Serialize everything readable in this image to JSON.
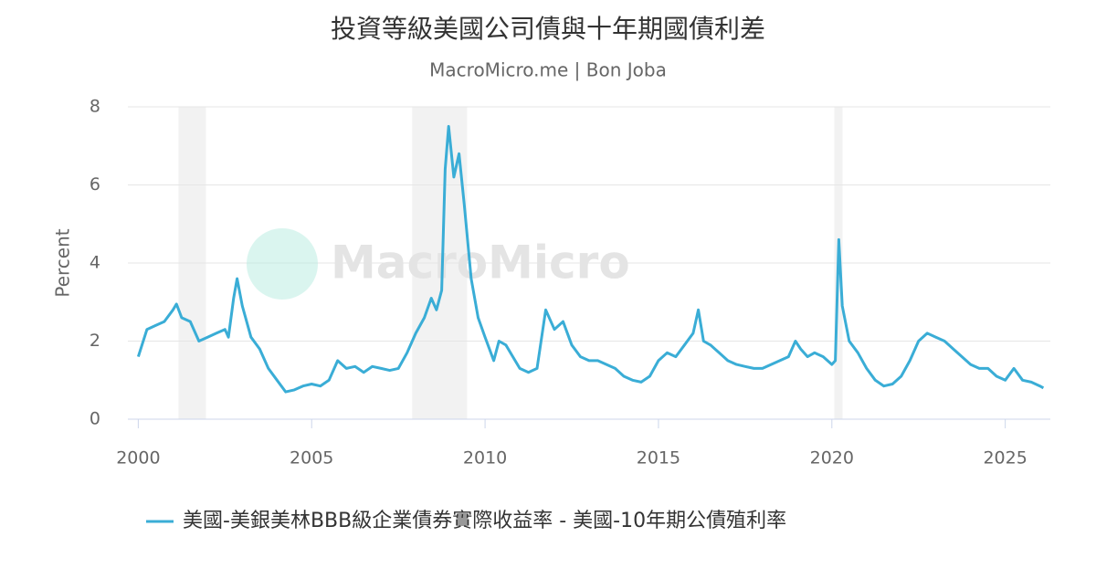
{
  "chart_data": {
    "type": "line",
    "title": "投資等級美國公司債與十年期國債利差",
    "subtitle": "MacroMicro.me | Bon Joba",
    "y_label": "Percent",
    "watermark": "MacroMicro",
    "xlim": [
      1999.7,
      2026.3
    ],
    "xticks": [
      2000,
      2005,
      2010,
      2015,
      2020,
      2025
    ],
    "ylim": [
      0,
      8
    ],
    "yticks": [
      0,
      2,
      4,
      6,
      8
    ],
    "grid": true,
    "shaded_periods": [
      [
        2001.16,
        2001.95
      ],
      [
        2007.9,
        2009.48
      ],
      [
        2020.07,
        2020.31
      ]
    ],
    "x": [
      2000.0,
      2000.25,
      2000.5,
      2000.75,
      2001.0,
      2001.1,
      2001.25,
      2001.5,
      2001.75,
      2002.0,
      2002.25,
      2002.5,
      2002.6,
      2002.75,
      2002.85,
      2003.0,
      2003.25,
      2003.5,
      2003.75,
      2004.0,
      2004.25,
      2004.5,
      2004.75,
      2005.0,
      2005.25,
      2005.5,
      2005.75,
      2006.0,
      2006.25,
      2006.5,
      2006.75,
      2007.0,
      2007.25,
      2007.5,
      2007.75,
      2008.0,
      2008.25,
      2008.45,
      2008.6,
      2008.75,
      2008.85,
      2008.95,
      2009.1,
      2009.25,
      2009.4,
      2009.6,
      2009.8,
      2010.0,
      2010.25,
      2010.4,
      2010.6,
      2010.8,
      2011.0,
      2011.25,
      2011.5,
      2011.75,
      2012.0,
      2012.25,
      2012.5,
      2012.75,
      2013.0,
      2013.25,
      2013.5,
      2013.75,
      2014.0,
      2014.25,
      2014.5,
      2014.75,
      2015.0,
      2015.25,
      2015.5,
      2015.75,
      2016.0,
      2016.15,
      2016.3,
      2016.5,
      2016.75,
      2017.0,
      2017.25,
      2017.5,
      2017.75,
      2018.0,
      2018.25,
      2018.5,
      2018.75,
      2018.95,
      2019.1,
      2019.3,
      2019.5,
      2019.75,
      2020.0,
      2020.1,
      2020.2,
      2020.3,
      2020.5,
      2020.75,
      2021.0,
      2021.25,
      2021.5,
      2021.75,
      2022.0,
      2022.25,
      2022.5,
      2022.75,
      2023.0,
      2023.25,
      2023.5,
      2023.75,
      2024.0,
      2024.25,
      2024.5,
      2024.75,
      2025.0,
      2025.25,
      2025.5,
      2025.75,
      2026.0,
      2026.1
    ],
    "series": [
      {
        "name": "美國-美銀美林BBB級企業債券實際收益率 - 美國-10年期公債殖利率",
        "color": "#3aadd6",
        "values": [
          1.6,
          2.3,
          2.4,
          2.5,
          2.8,
          2.95,
          2.6,
          2.5,
          2.0,
          2.1,
          2.2,
          2.3,
          2.1,
          3.1,
          3.6,
          2.9,
          2.1,
          1.8,
          1.3,
          1.0,
          0.7,
          0.75,
          0.85,
          0.9,
          0.85,
          1.0,
          1.5,
          1.3,
          1.35,
          1.2,
          1.35,
          1.3,
          1.25,
          1.3,
          1.7,
          2.2,
          2.6,
          3.1,
          2.8,
          3.3,
          6.4,
          7.5,
          6.2,
          6.8,
          5.5,
          3.6,
          2.6,
          2.1,
          1.5,
          2.0,
          1.9,
          1.6,
          1.3,
          1.2,
          1.3,
          2.8,
          2.3,
          2.5,
          1.9,
          1.6,
          1.5,
          1.5,
          1.4,
          1.3,
          1.1,
          1.0,
          0.95,
          1.1,
          1.5,
          1.7,
          1.6,
          1.9,
          2.2,
          2.8,
          2.0,
          1.9,
          1.7,
          1.5,
          1.4,
          1.35,
          1.3,
          1.3,
          1.4,
          1.5,
          1.6,
          2.0,
          1.8,
          1.6,
          1.7,
          1.6,
          1.4,
          1.5,
          4.6,
          2.9,
          2.0,
          1.7,
          1.3,
          1.0,
          0.85,
          0.9,
          1.1,
          1.5,
          2.0,
          2.2,
          2.1,
          2.0,
          1.8,
          1.6,
          1.4,
          1.3,
          1.3,
          1.1,
          1.0,
          1.3,
          1.0,
          0.95,
          0.85,
          0.8
        ]
      }
    ]
  }
}
